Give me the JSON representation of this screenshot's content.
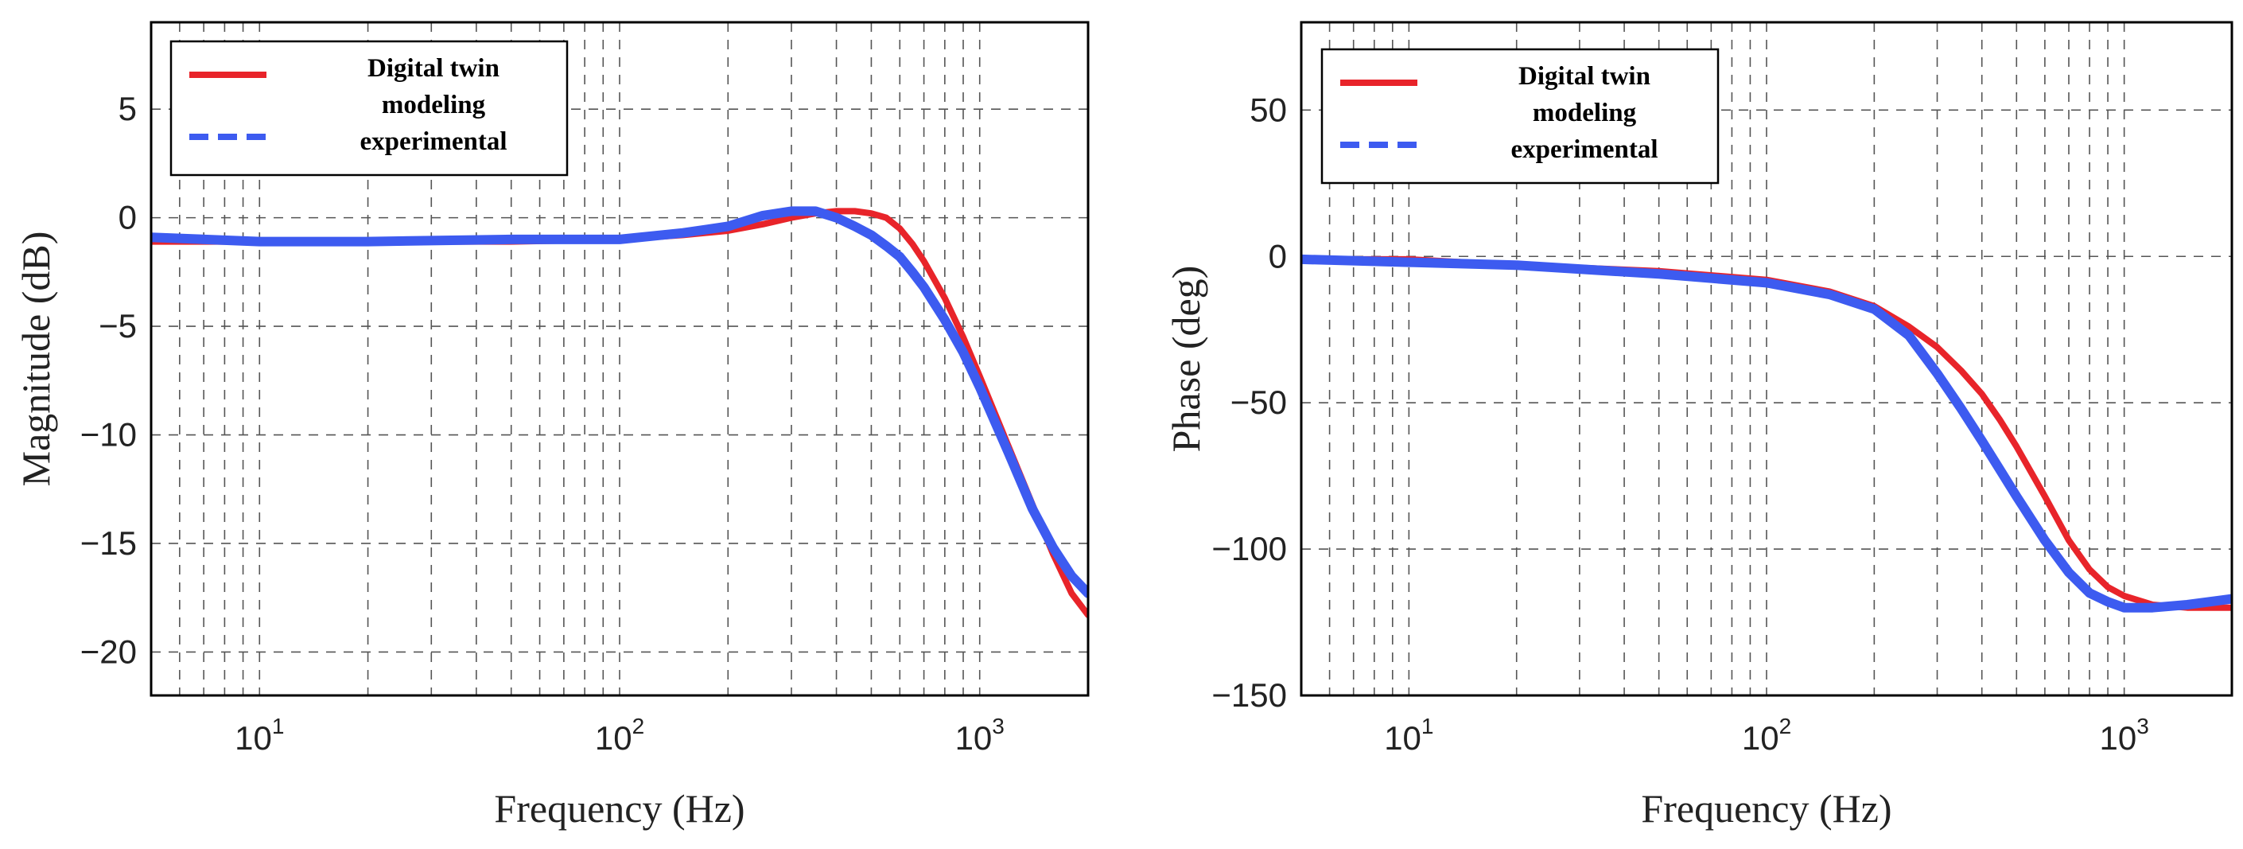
{
  "figure": {
    "chart_data": [
      {
        "type": "line",
        "xscale": "log",
        "xlim": [
          5,
          2000
        ],
        "ylim": [
          -22,
          9
        ],
        "xlabel": "Frequency (Hz)",
        "ylabel": "Magnitude (dB)",
        "grid": true,
        "legend_position": "top-left",
        "xticks": [
          {
            "base": "10",
            "exp": "1",
            "value": 10
          },
          {
            "base": "10",
            "exp": "2",
            "value": 100
          },
          {
            "base": "10",
            "exp": "3",
            "value": 1000
          }
        ],
        "yticks": [
          {
            "label": "5",
            "value": 5
          },
          {
            "label": "0",
            "value": 0
          },
          {
            "label": "−5",
            "value": -5
          },
          {
            "label": "−10",
            "value": -10
          },
          {
            "label": "−15",
            "value": -15
          },
          {
            "label": "−20",
            "value": -20
          }
        ],
        "series": [
          {
            "name": "Digital twin modeling",
            "color": "#e8242a",
            "style": "solid",
            "x": [
              5,
              10,
              20,
              50,
              100,
              150,
              200,
              250,
              300,
              350,
              400,
              450,
              500,
              550,
              600,
              650,
              700,
              800,
              900,
              1000,
              1200,
              1400,
              1600,
              1800,
              2000
            ],
            "y": [
              -1.1,
              -1.1,
              -1.1,
              -1.1,
              -1.0,
              -0.8,
              -0.6,
              -0.3,
              0.0,
              0.2,
              0.3,
              0.3,
              0.2,
              0.0,
              -0.5,
              -1.2,
              -2.0,
              -3.7,
              -5.5,
              -7.3,
              -10.5,
              -13.2,
              -15.5,
              -17.3,
              -18.3
            ]
          },
          {
            "name": "experimental",
            "color": "#3d5bf0",
            "style": "dashed",
            "x": [
              5,
              10,
              20,
              50,
              100,
              150,
              200,
              250,
              300,
              350,
              400,
              450,
              500,
              550,
              600,
              650,
              700,
              800,
              900,
              1000,
              1200,
              1400,
              1600,
              1800,
              2000
            ],
            "y": [
              -0.9,
              -1.1,
              -1.1,
              -1.0,
              -1.0,
              -0.7,
              -0.4,
              0.1,
              0.3,
              0.3,
              0.0,
              -0.4,
              -0.8,
              -1.3,
              -1.8,
              -2.5,
              -3.2,
              -4.7,
              -6.2,
              -7.8,
              -10.8,
              -13.4,
              -15.2,
              -16.5,
              -17.3
            ]
          }
        ]
      },
      {
        "type": "line",
        "xscale": "log",
        "xlim": [
          5,
          2000
        ],
        "ylim": [
          -150,
          80
        ],
        "xlabel": "Frequency (Hz)",
        "ylabel": "Phase (deg)",
        "grid": true,
        "legend_position": "top-left",
        "xticks": [
          {
            "base": "10",
            "exp": "1",
            "value": 10
          },
          {
            "base": "10",
            "exp": "2",
            "value": 100
          },
          {
            "base": "10",
            "exp": "3",
            "value": 1000
          }
        ],
        "yticks": [
          {
            "label": "50",
            "value": 50
          },
          {
            "label": "0",
            "value": 0
          },
          {
            "label": "−50",
            "value": -50
          },
          {
            "label": "−100",
            "value": -100
          },
          {
            "label": "−150",
            "value": -150
          }
        ],
        "series": [
          {
            "name": "Digital twin modeling",
            "color": "#e8242a",
            "style": "solid",
            "x": [
              5,
              10,
              20,
              50,
              100,
              150,
              200,
              250,
              300,
              350,
              400,
              450,
              500,
              600,
              700,
              800,
              900,
              1000,
              1200,
              1500,
              2000
            ],
            "y": [
              -1,
              -1,
              -3,
              -5,
              -8,
              -12,
              -17,
              -24,
              -31,
              -39,
              -47,
              -56,
              -65,
              -82,
              -97,
              -107,
              -113,
              -116,
              -119,
              -120,
              -120
            ]
          },
          {
            "name": "experimental",
            "color": "#3d5bf0",
            "style": "dashed",
            "x": [
              5,
              10,
              20,
              50,
              100,
              150,
              200,
              250,
              300,
              350,
              400,
              450,
              500,
              600,
              700,
              800,
              900,
              1000,
              1200,
              1500,
              2000
            ],
            "y": [
              -1,
              -2,
              -3,
              -6,
              -9,
              -13,
              -18,
              -27,
              -40,
              -52,
              -63,
              -73,
              -82,
              -97,
              -108,
              -115,
              -118,
              -120,
              -120,
              -119,
              -117
            ]
          }
        ]
      }
    ],
    "legends": [
      {
        "line1": "Digital twin",
        "line2": "modeling",
        "line3": "experimental"
      },
      {
        "line1": "Digital twin",
        "line2": "modeling",
        "line3": "experimental"
      }
    ]
  }
}
